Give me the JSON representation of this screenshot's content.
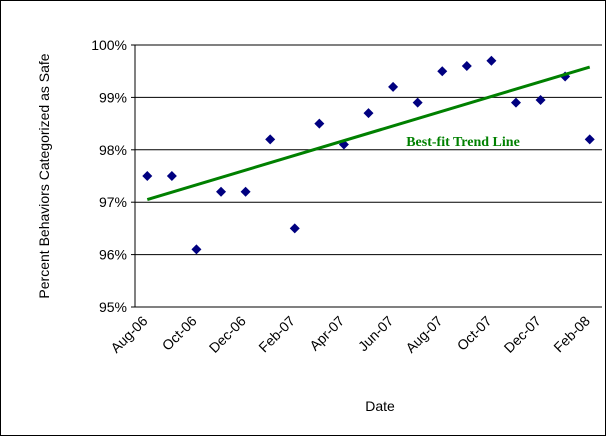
{
  "chart_data": {
    "type": "scatter",
    "x_label": "Date",
    "y_label": "Percent Behaviors Categorized as Safe",
    "categories": [
      "Aug-06",
      null,
      "Oct-06",
      null,
      "Dec-06",
      null,
      "Feb-07",
      null,
      "Apr-07",
      null,
      "Jun-07",
      null,
      "Aug-07",
      null,
      "Oct-07",
      null,
      "Dec-07",
      null,
      "Feb-08"
    ],
    "values": [
      97.5,
      97.5,
      96.1,
      97.2,
      97.2,
      98.2,
      96.5,
      98.5,
      98.1,
      98.7,
      99.2,
      98.9,
      99.5,
      99.6,
      99.7,
      98.9,
      98.95,
      99.4,
      98.2
    ],
    "color": "#000080",
    "ylim": [
      95,
      100
    ],
    "yticks": [
      {
        "value": 95,
        "label": "95%"
      },
      {
        "value": 96,
        "label": "96%"
      },
      {
        "value": 97,
        "label": "97%"
      },
      {
        "value": 98,
        "label": "98%"
      },
      {
        "value": 99,
        "label": "99%"
      },
      {
        "value": 100,
        "label": "100%"
      }
    ],
    "grid": true,
    "trend_line": {
      "label": "Best-fit Trend Line",
      "start": 97.05,
      "end": 99.58,
      "color": "#008000"
    }
  }
}
